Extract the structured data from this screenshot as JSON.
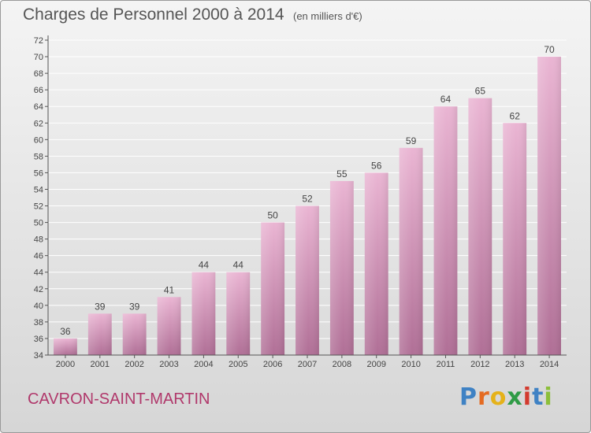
{
  "title": "Charges de Personnel 2000 à 2014",
  "subtitle": "(en milliers d'€)",
  "commune": "CAVRON-SAINT-MARTIN",
  "logo": {
    "letters": [
      "P",
      "r",
      "o",
      "x",
      "i",
      "t",
      "i"
    ],
    "colors": [
      "#3f82c4",
      "#e46b22",
      "#e5b21a",
      "#2f9b46",
      "#d33b2f",
      "#3f82c4",
      "#8cbf3a"
    ]
  },
  "colors": {
    "bar_light": "#eab5d3",
    "bar_dark": "#b06f96",
    "grid": "#ffffff",
    "axis": "#555555"
  },
  "chart_data": {
    "type": "bar",
    "title": "Charges de Personnel 2000 à 2014",
    "categories": [
      "2000",
      "2001",
      "2002",
      "2003",
      "2004",
      "2005",
      "2006",
      "2007",
      "2008",
      "2009",
      "2010",
      "2011",
      "2012",
      "2013",
      "2014"
    ],
    "values": [
      36,
      39,
      39,
      41,
      44,
      44,
      50,
      52,
      55,
      56,
      59,
      64,
      65,
      62,
      70
    ],
    "xlabel": "",
    "ylabel": "",
    "ylim": [
      34,
      72
    ],
    "yticks": [
      34,
      36,
      38,
      40,
      42,
      44,
      46,
      48,
      50,
      52,
      54,
      56,
      58,
      60,
      62,
      64,
      66,
      68,
      70,
      72
    ],
    "grid": true
  }
}
